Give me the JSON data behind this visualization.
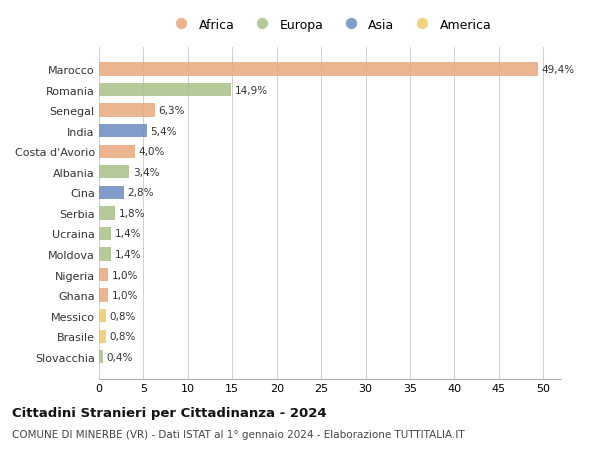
{
  "countries": [
    "Marocco",
    "Romania",
    "Senegal",
    "India",
    "Costa d'Avorio",
    "Albania",
    "Cina",
    "Serbia",
    "Ucraina",
    "Moldova",
    "Nigeria",
    "Ghana",
    "Messico",
    "Brasile",
    "Slovacchia"
  ],
  "values": [
    49.4,
    14.9,
    6.3,
    5.4,
    4.0,
    3.4,
    2.8,
    1.8,
    1.4,
    1.4,
    1.0,
    1.0,
    0.8,
    0.8,
    0.4
  ],
  "labels": [
    "49,4%",
    "14,9%",
    "6,3%",
    "5,4%",
    "4,0%",
    "3,4%",
    "2,8%",
    "1,8%",
    "1,4%",
    "1,4%",
    "1,0%",
    "1,0%",
    "0,8%",
    "0,8%",
    "0,4%"
  ],
  "continents": [
    "Africa",
    "Europa",
    "Africa",
    "Asia",
    "Africa",
    "Europa",
    "Asia",
    "Europa",
    "Europa",
    "Europa",
    "Africa",
    "Africa",
    "America",
    "America",
    "Europa"
  ],
  "colors": {
    "Africa": "#E8A87C",
    "Europa": "#A8C08A",
    "Asia": "#6B8CBE",
    "America": "#F0C96A"
  },
  "title": "Cittadini Stranieri per Cittadinanza - 2024",
  "subtitle": "COMUNE DI MINERBE (VR) - Dati ISTAT al 1° gennaio 2024 - Elaborazione TUTTITALIA.IT",
  "xlim": [
    0,
    52
  ],
  "xticks": [
    0,
    5,
    10,
    15,
    20,
    25,
    30,
    35,
    40,
    45,
    50
  ],
  "background_color": "#ffffff",
  "grid_color": "#d0d0d0"
}
